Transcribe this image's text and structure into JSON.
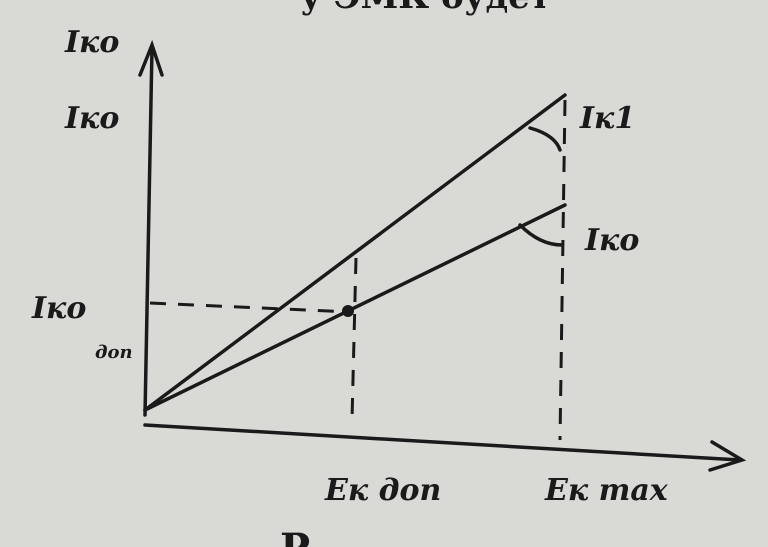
{
  "header": {
    "text": "у ЭМК будет"
  },
  "axes": {
    "y_label": "Iко",
    "y_tick": "Iко",
    "x_labels": [
      "Ек доп",
      "Ек max"
    ]
  },
  "curves": [
    {
      "label": "Iк1"
    },
    {
      "label": "Iко"
    }
  ],
  "operating_point": {
    "label": "Iко",
    "subscript": "доп"
  },
  "footer": {
    "text": "Р"
  }
}
